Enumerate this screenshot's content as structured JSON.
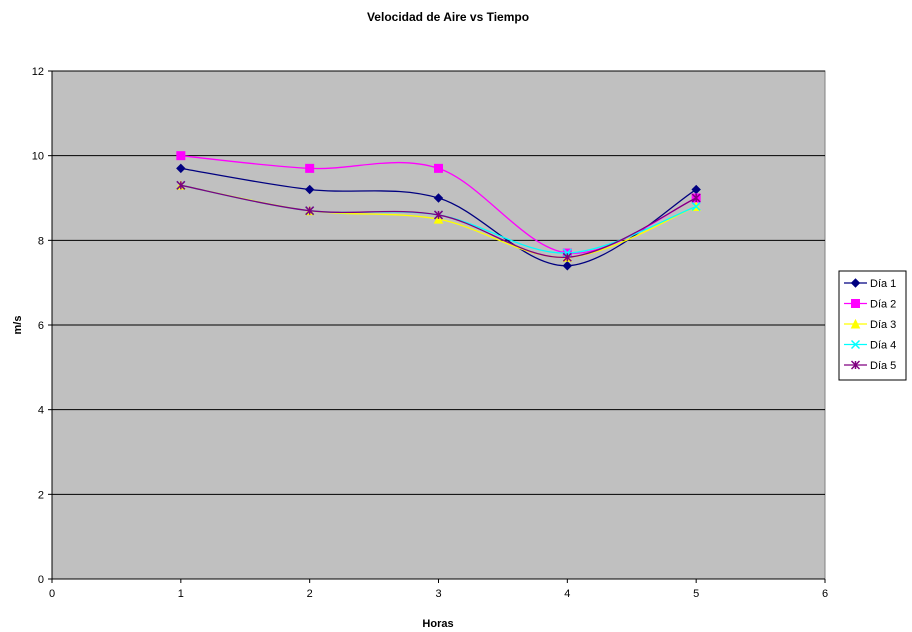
{
  "chart_data": {
    "type": "line",
    "title": "Velocidad de Aire vs Tiempo",
    "xlabel": "Horas",
    "ylabel": "m/s",
    "xlim": [
      0,
      6
    ],
    "ylim": [
      0,
      12
    ],
    "xticks": [
      "0",
      "1",
      "2",
      "3",
      "4",
      "5",
      "6"
    ],
    "yticks": [
      "0",
      "2",
      "4",
      "6",
      "8",
      "10",
      "12"
    ],
    "x": [
      1,
      2,
      3,
      4,
      5
    ],
    "grid": "horizontal",
    "plot_background": "#c0c0c0",
    "legend_position": "right",
    "smoothed": true,
    "series": [
      {
        "name": "Día 1",
        "values": [
          9.7,
          9.2,
          9.0,
          7.4,
          9.2
        ],
        "color": "#000080",
        "marker": "diamond"
      },
      {
        "name": "Día 2",
        "values": [
          10.0,
          9.7,
          9.7,
          7.7,
          9.0
        ],
        "color": "#ff00ff",
        "marker": "square"
      },
      {
        "name": "Día 3",
        "values": [
          9.3,
          8.7,
          8.5,
          7.6,
          8.8
        ],
        "color": "#ffff00",
        "marker": "triangle"
      },
      {
        "name": "Día 4",
        "values": [
          9.3,
          8.7,
          8.6,
          7.7,
          8.8
        ],
        "color": "#00ffff",
        "marker": "x"
      },
      {
        "name": "Día 5",
        "values": [
          9.3,
          8.7,
          8.6,
          7.6,
          9.0
        ],
        "color": "#800080",
        "marker": "star"
      }
    ]
  }
}
